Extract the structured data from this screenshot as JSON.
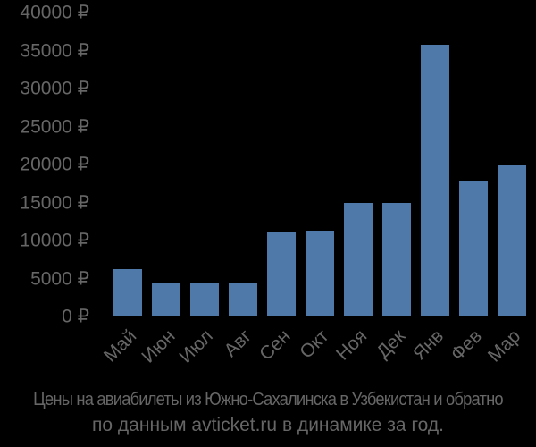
{
  "chart_data": {
    "type": "bar",
    "title": "Цены на авиабилеты из Южно-Сахалинска в Узбекистан и обратно по данным avticket.ru в динамике за год.",
    "caption_line1": "Цены на авиабилеты из Южно-Сахалинска в Узбекистан и обратно",
    "caption_line2": "по данным avticket.ru в динамике за год.",
    "xlabel": "",
    "ylabel": "",
    "categories": [
      "Май",
      "Июн",
      "Июл",
      "Авг",
      "Сен",
      "Окт",
      "Ноя",
      "Дек",
      "Янв",
      "Фев",
      "Мар"
    ],
    "values": [
      6200,
      4350,
      4350,
      4500,
      11200,
      11300,
      14900,
      14900,
      35800,
      17900,
      19900
    ],
    "ylim": [
      0,
      40000
    ],
    "yticks": [
      "0 ₽",
      "5000 ₽",
      "10000 ₽",
      "15000 ₽",
      "20000 ₽",
      "25000 ₽",
      "30000 ₽",
      "35000 ₽",
      "40000 ₽"
    ],
    "ytick_values": [
      0,
      5000,
      10000,
      15000,
      20000,
      25000,
      30000,
      35000,
      40000
    ],
    "grid": false,
    "legend": null,
    "bar_color": "#4f79a8",
    "background": "#000000",
    "text_color": "#666666"
  }
}
